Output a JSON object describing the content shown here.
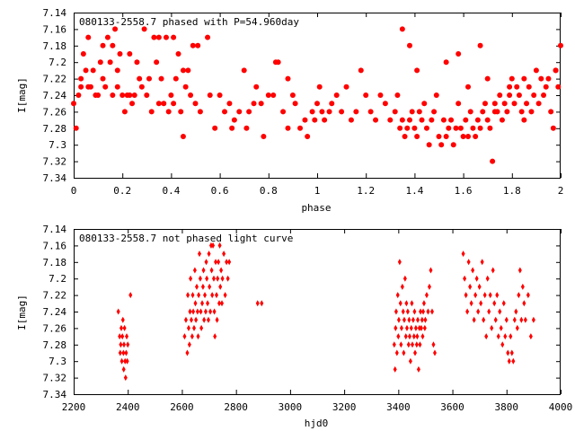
{
  "chart_data": [
    {
      "type": "scatter",
      "title": "080133-2558.7 phased with P=54.960day",
      "xlabel": "phase",
      "ylabel": "I[mag]",
      "xlim": [
        0,
        2
      ],
      "ylim": [
        7.34,
        7.14
      ],
      "y_inverted": true,
      "grid": false,
      "marker_color": "#ff0000",
      "marker": "filled-circle",
      "xticks": [
        "0",
        "0.2",
        "0.4",
        "0.6",
        "0.8",
        "1",
        "1.2",
        "1.4",
        "1.6",
        "1.8",
        "2"
      ],
      "yticks": [
        "7.14",
        "7.16",
        "7.18",
        "7.2",
        "7.22",
        "7.24",
        "7.26",
        "7.28",
        "7.3",
        "7.32",
        "7.34"
      ],
      "series": [
        {
          "x": [
            0.0,
            0.01,
            0.02,
            0.03,
            0.03,
            0.04,
            0.05,
            0.06,
            0.06,
            0.07,
            0.08,
            0.09,
            0.1,
            0.11,
            0.12,
            0.12,
            0.13,
            0.14,
            0.15,
            0.16,
            0.16,
            0.17,
            0.18,
            0.18,
            0.19,
            0.2,
            0.21,
            0.22,
            0.23,
            0.23,
            0.24,
            0.25,
            0.26,
            0.27,
            0.28,
            0.29,
            0.3,
            0.31,
            0.32,
            0.33,
            0.34,
            0.35,
            0.36,
            0.37,
            0.38,
            0.39,
            0.4,
            0.41,
            0.42,
            0.43,
            0.44,
            0.45,
            0.46,
            0.47,
            0.48,
            0.49,
            0.5,
            0.52,
            0.55,
            0.56,
            0.58,
            0.6,
            0.62,
            0.64,
            0.65,
            0.66,
            0.68,
            0.7,
            0.71,
            0.72,
            0.74,
            0.75,
            0.77,
            0.78,
            0.8,
            0.82,
            0.84,
            0.86,
            0.88,
            0.9,
            0.91,
            0.93,
            0.95,
            0.96,
            0.98,
            0.99
          ],
          "y": [
            7.25,
            7.28,
            7.24,
            7.23,
            7.22,
            7.19,
            7.21,
            7.23,
            7.17,
            7.23,
            7.21,
            7.24,
            7.24,
            7.2,
            7.18,
            7.22,
            7.23,
            7.17,
            7.2,
            7.24,
            7.18,
            7.16,
            7.23,
            7.21,
            7.19,
            7.24,
            7.26,
            7.24,
            7.24,
            7.19,
            7.25,
            7.24,
            7.2,
            7.22,
            7.23,
            7.16,
            7.24,
            7.22,
            7.26,
            7.17,
            7.2,
            7.25,
            7.22,
            7.25,
            7.17,
            7.26,
            7.24,
            7.25,
            7.22,
            7.19,
            7.26,
            7.29,
            7.23,
            7.21,
            7.24,
            7.18,
            7.25,
            7.26,
            7.17,
            7.24,
            7.28,
            7.24,
            7.26,
            7.25,
            7.28,
            7.27,
            7.26,
            7.21,
            7.28,
            7.26,
            7.25,
            7.23,
            7.25,
            7.29,
            7.24,
            7.24,
            7.2,
            7.26,
            7.28,
            7.24,
            7.25,
            7.28,
            7.27,
            7.29,
            7.26,
            7.27
          ]
        },
        {
          "x": [
            1.0,
            1.01,
            1.02,
            1.03,
            1.05,
            1.06,
            1.08,
            1.1,
            1.12,
            1.14,
            1.16,
            1.18,
            1.2,
            1.22,
            1.24,
            1.26,
            1.28,
            1.3,
            1.32,
            1.33,
            1.34,
            1.35,
            1.36,
            1.37,
            1.38,
            1.39,
            1.4,
            1.41,
            1.42,
            1.43,
            1.44,
            1.45,
            1.46,
            1.47,
            1.48,
            1.49,
            1.5,
            1.51,
            1.52,
            1.53,
            1.54,
            1.55,
            1.56,
            1.57,
            1.58,
            1.59,
            1.6,
            1.61,
            1.62,
            1.63,
            1.64,
            1.65,
            1.66,
            1.67,
            1.68,
            1.69,
            1.7,
            1.71,
            1.72,
            1.73,
            1.74,
            1.75,
            1.76,
            1.77,
            1.78,
            1.79,
            1.8,
            1.81,
            1.82,
            1.83,
            1.84,
            1.85,
            1.86,
            1.87,
            1.88,
            1.89,
            1.9,
            1.91,
            1.92,
            1.93,
            1.94,
            1.95,
            1.96,
            1.97,
            1.98,
            1.99
          ],
          "y": [
            7.25,
            7.23,
            7.26,
            7.27,
            7.26,
            7.25,
            7.24,
            7.26,
            7.23,
            7.27,
            7.26,
            7.21,
            7.24,
            7.26,
            7.27,
            7.24,
            7.25,
            7.27,
            7.26,
            7.24,
            7.28,
            7.27,
            7.29,
            7.28,
            7.27,
            7.26,
            7.28,
            7.29,
            7.26,
            7.27,
            7.25,
            7.28,
            7.3,
            7.27,
            7.26,
            7.24,
            7.29,
            7.3,
            7.27,
            7.29,
            7.28,
            7.27,
            7.3,
            7.28,
            7.25,
            7.28,
            7.29,
            7.27,
            7.29,
            7.26,
            7.28,
            7.29,
            7.27,
            7.28,
            7.26,
            7.25,
            7.27,
            7.28,
            7.32,
            7.25,
            7.26,
            7.24,
            7.27,
            7.25,
            7.26,
            7.24,
            7.22,
            7.25,
            7.23,
            7.24,
            7.26,
            7.27,
            7.25,
            7.23,
            7.26,
            7.24,
            7.21,
            7.25,
            7.22,
            7.24,
            7.23,
            7.22,
            7.26,
            7.28,
            7.21,
            7.23
          ]
        },
        {
          "x": [
            0.35,
            0.41,
            0.45,
            0.51,
            0.83,
            0.88,
            1.35,
            1.38,
            1.41,
            1.53,
            1.58,
            1.62,
            1.67,
            1.7,
            1.73,
            1.79,
            1.85,
            1.98,
            2.0
          ],
          "y": [
            7.17,
            7.17,
            7.21,
            7.18,
            7.2,
            7.22,
            7.16,
            7.18,
            7.21,
            7.2,
            7.19,
            7.23,
            7.18,
            7.22,
            7.26,
            7.23,
            7.22,
            7.21,
            7.18
          ]
        }
      ]
    },
    {
      "type": "scatter",
      "title": "080133-2558.7 not phased light curve",
      "xlabel": "hjd0",
      "ylabel": "I[mag]",
      "xlim": [
        2200,
        4000
      ],
      "ylim": [
        7.34,
        7.14
      ],
      "y_inverted": true,
      "grid": false,
      "marker_color": "#ff0000",
      "marker": "diamond",
      "xticks": [
        "2200",
        "2400",
        "2600",
        "2800",
        "3000",
        "3200",
        "3400",
        "3600",
        "3800",
        "4000"
      ],
      "yticks": [
        "7.14",
        "7.16",
        "7.18",
        "7.2",
        "7.22",
        "7.24",
        "7.26",
        "7.28",
        "7.3",
        "7.32",
        "7.34"
      ],
      "series": [
        {
          "x": [
            2365,
            2370,
            2372,
            2374,
            2376,
            2378,
            2380,
            2382,
            2384,
            2385,
            2386,
            2388,
            2390,
            2392,
            2394,
            2396,
            2398,
            2400,
            2410
          ],
          "y": [
            7.24,
            7.27,
            7.29,
            7.28,
            7.26,
            7.3,
            7.27,
            7.25,
            7.29,
            7.31,
            7.28,
            7.26,
            7.3,
            7.32,
            7.29,
            7.27,
            7.3,
            7.28,
            7.22
          ]
        },
        {
          "x": [
            2610,
            2615,
            2620,
            2622,
            2625,
            2628,
            2630,
            2632,
            2635,
            2638,
            2640,
            2642,
            2645,
            2648,
            2650,
            2652,
            2655,
            2658,
            2660,
            2662,
            2665,
            2668,
            2670,
            2672,
            2675,
            2678,
            2680,
            2682,
            2685,
            2688,
            2690,
            2692,
            2695,
            2698,
            2700,
            2702,
            2705,
            2708,
            2710,
            2712,
            2715,
            2718,
            2720,
            2722,
            2725,
            2728,
            2730,
            2732,
            2735,
            2738,
            2740,
            2742,
            2745,
            2748,
            2750,
            2755,
            2760,
            2765,
            2770,
            2775
          ],
          "y": [
            7.27,
            7.25,
            7.29,
            7.22,
            7.26,
            7.28,
            7.24,
            7.2,
            7.25,
            7.27,
            7.22,
            7.24,
            7.26,
            7.19,
            7.23,
            7.25,
            7.21,
            7.24,
            7.27,
            7.22,
            7.17,
            7.2,
            7.24,
            7.26,
            7.23,
            7.21,
            7.19,
            7.25,
            7.22,
            7.24,
            7.18,
            7.2,
            7.23,
            7.25,
            7.17,
            7.21,
            7.24,
            7.16,
            7.19,
            7.22,
            7.16,
            7.2,
            7.24,
            7.27,
            7.18,
            7.22,
            7.25,
            7.2,
            7.18,
            7.23,
            7.16,
            7.21,
            7.19,
            7.23,
            7.2,
            7.17,
            7.22,
            7.18,
            7.2,
            7.18
          ]
        },
        {
          "x": [
            2880,
            2895
          ],
          "y": [
            7.23,
            7.23
          ]
        },
        {
          "x": [
            3385,
            3388,
            3390,
            3392,
            3395,
            3398,
            3400,
            3402,
            3405,
            3408,
            3410,
            3412,
            3415,
            3418,
            3420,
            3422,
            3425,
            3428,
            3430,
            3432,
            3435,
            3438,
            3440,
            3442,
            3445,
            3448,
            3450,
            3452,
            3455,
            3458,
            3460,
            3462,
            3465,
            3468,
            3470,
            3472,
            3475,
            3478,
            3480,
            3482,
            3485,
            3488,
            3490,
            3492,
            3495,
            3498,
            3500,
            3505,
            3510,
            3515,
            3520,
            3525,
            3530,
            3535
          ],
          "y": [
            7.28,
            7.31,
            7.26,
            7.24,
            7.29,
            7.22,
            7.27,
            7.25,
            7.18,
            7.23,
            7.28,
            7.26,
            7.21,
            7.24,
            7.29,
            7.25,
            7.2,
            7.27,
            7.23,
            7.26,
            7.24,
            7.28,
            7.25,
            7.27,
            7.3,
            7.26,
            7.23,
            7.28,
            7.25,
            7.27,
            7.24,
            7.29,
            7.26,
            7.28,
            7.27,
            7.25,
            7.31,
            7.26,
            7.28,
            7.24,
            7.26,
            7.25,
            7.27,
            7.24,
            7.23,
            7.26,
            7.25,
            7.22,
            7.24,
            7.21,
            7.19,
            7.24,
            7.28,
            7.29
          ]
        },
        {
          "x": [
            3640,
            3645,
            3650,
            3655,
            3660,
            3665,
            3670,
            3675,
            3680,
            3685,
            3690,
            3695,
            3700,
            3705,
            3710,
            3715,
            3720,
            3725,
            3730,
            3735,
            3740,
            3745,
            3750,
            3755,
            3760,
            3765,
            3770,
            3775,
            3780,
            3785,
            3790,
            3795,
            3800,
            3805,
            3810,
            3815,
            3820,
            3825,
            3830,
            3835,
            3840,
            3845,
            3850,
            3855,
            3860,
            3865,
            3870,
            3880,
            3890,
            3900
          ],
          "y": [
            7.17,
            7.2,
            7.22,
            7.24,
            7.18,
            7.21,
            7.23,
            7.19,
            7.25,
            7.22,
            7.2,
            7.24,
            7.21,
            7.23,
            7.18,
            7.25,
            7.22,
            7.27,
            7.2,
            7.24,
            7.22,
            7.26,
            7.19,
            7.23,
            7.25,
            7.22,
            7.27,
            7.24,
            7.26,
            7.28,
            7.23,
            7.27,
            7.25,
            7.29,
            7.3,
            7.27,
            7.29,
            7.3,
            7.25,
            7.24,
            7.26,
            7.22,
            7.19,
            7.25,
            7.21,
            7.23,
            7.25,
            7.22,
            7.27,
            7.25
          ]
        }
      ]
    }
  ]
}
